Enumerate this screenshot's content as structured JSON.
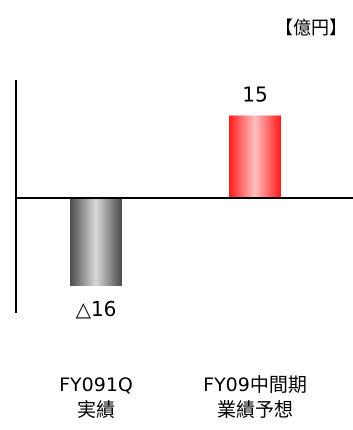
{
  "chart_data": {
    "type": "bar",
    "unit_label": "【億円】",
    "categories": [
      {
        "line1": "FY091Q",
        "line2": "実績"
      },
      {
        "line1": "FY09中間期",
        "line2": "業績予想"
      }
    ],
    "values": [
      -16,
      15
    ],
    "value_labels": [
      "△16",
      "15"
    ],
    "ylim": [
      -24,
      23
    ],
    "bar_colors": [
      {
        "dark": "#4a4a4a",
        "light": "#d9d9d9"
      },
      {
        "dark": "#ff1a1a",
        "light": "#ffc0c0"
      }
    ],
    "legend": "none",
    "grid": false
  }
}
